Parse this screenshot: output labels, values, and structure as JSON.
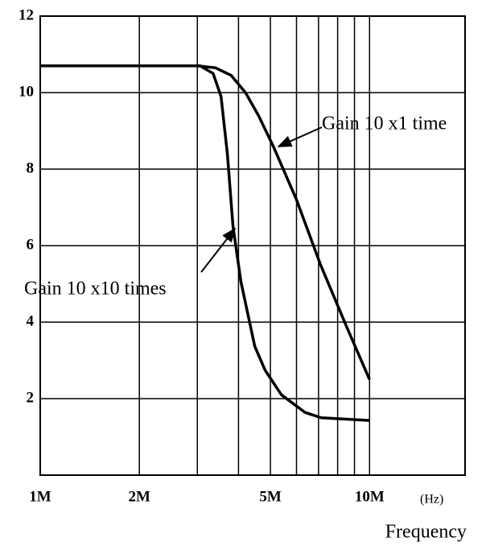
{
  "chart_data": {
    "type": "line",
    "log_x": true,
    "grid": true,
    "color": "#000000",
    "xlim": [
      1000000,
      19500000
    ],
    "ylim": [
      0,
      12
    ],
    "xticks": [
      {
        "value": 1000000,
        "label": "1M"
      },
      {
        "value": 2000000,
        "label": "2M"
      },
      {
        "value": 5000000,
        "label": "5M"
      },
      {
        "value": 10000000,
        "label": "10M"
      }
    ],
    "xminor": [
      3000000,
      4000000,
      6000000,
      7000000,
      8000000,
      9000000
    ],
    "yticks": [
      2,
      4,
      6,
      8,
      10,
      12
    ],
    "x_unit": "(Hz)",
    "xlabel": "Frequency",
    "series": [
      {
        "name": "Gain 10 x1 time",
        "color": "#000000",
        "x": [
          1000000,
          3000000,
          3400000,
          3800000,
          4200000,
          4600000,
          5100000,
          6000000,
          7100000,
          8500000,
          10000000
        ],
        "values": [
          10.7,
          10.7,
          10.65,
          10.45,
          10.0,
          9.4,
          8.6,
          7.2,
          5.5,
          3.9,
          2.5
        ]
      },
      {
        "name": "Gain 10 x10 times",
        "color": "#000000",
        "x": [
          1000000,
          3060000,
          3350000,
          3540000,
          3700000,
          3850000,
          4070000,
          4480000,
          4820000,
          5400000,
          6370000,
          7140000,
          10000000
        ],
        "values": [
          10.7,
          10.7,
          10.5,
          9.9,
          8.4,
          6.5,
          5.05,
          3.37,
          2.74,
          2.1,
          1.64,
          1.5,
          1.43
        ]
      }
    ]
  }
}
